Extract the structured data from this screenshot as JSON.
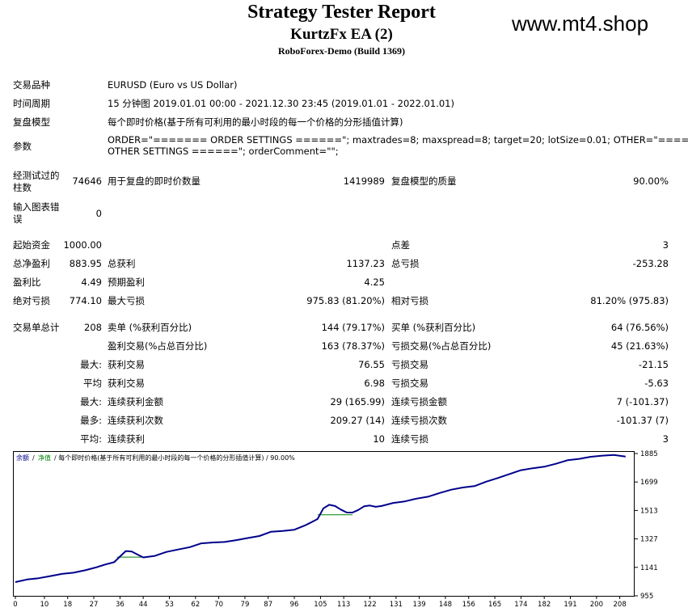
{
  "header": {
    "title": "Strategy Tester Report",
    "ea_name": "KurtzFx EA (2)",
    "server": "RoboForex-Demo (Build 1369)",
    "watermark": "www.mt4.shop"
  },
  "info": {
    "symbol_label": "交易品种",
    "symbol_value": "EURUSD (Euro vs US Dollar)",
    "period_label": "时间周期",
    "period_value": "15 分钟图 2019.01.01 00:00 - 2021.12.30 23:45 (2019.01.01 - 2022.01.01)",
    "model_label": "复盘模型",
    "model_value": "每个即时价格(基于所有可利用的最小时段的每一个价格的分形插值计算)",
    "params_label": "参数",
    "params_line1": "ORDER=\"======= ORDER SETTINGS ======\"; maxtrades=8; maxspread=8; target=20; lotSize=0.01; OTHER=\"=======",
    "params_line2": "OTHER SETTINGS ======\"; orderComment=\"\";"
  },
  "bars": {
    "label_l1": "经测试过的",
    "label_l2": "柱数",
    "value": "74646",
    "ticks_label": "用于复盘的即时价数量",
    "ticks_value": "1419989",
    "quality_label": "复盘模型的质量",
    "quality_value": "90.00%",
    "errors_l1": "输入图表错",
    "errors_l2": "误",
    "errors_value": "0"
  },
  "stats": {
    "deposit_label": "起始资金",
    "deposit_value": "1000.00",
    "spread_label": "点差",
    "spread_value": "3",
    "net_label": "总净盈利",
    "net_value": "883.95",
    "gross_profit_label": "总获利",
    "gross_profit_value": "1137.23",
    "gross_loss_label": "总亏损",
    "gross_loss_value": "-253.28",
    "pf_label": "盈利比",
    "pf_value": "4.49",
    "payoff_label": "预期盈利",
    "payoff_value": "4.25",
    "abs_dd_label": "绝对亏损",
    "abs_dd_value": "774.10",
    "max_dd_label": "最大亏损",
    "max_dd_value": "975.83 (81.20%)",
    "rel_dd_label": "相对亏损",
    "rel_dd_value": "81.20% (975.83)"
  },
  "trades": {
    "total_label": "交易单总计",
    "total_value": "208",
    "short_label": "卖单 (%获利百分比)",
    "short_value": "144 (79.17%)",
    "long_label": "买单 (%获利百分比)",
    "long_value": "64 (76.56%)",
    "profit_trades_label": "盈利交易(%占总百分比)",
    "profit_trades_value": "163 (78.37%)",
    "loss_trades_label": "亏损交易(%占总百分比)",
    "loss_trades_value": "45 (21.63%)",
    "max_pre": "最大:",
    "largest_profit_label": "获利交易",
    "largest_profit_value": "76.55",
    "largest_loss_label": "亏损交易",
    "largest_loss_value": "-21.15",
    "avg_pre": "平均",
    "avg_profit_label": "获利交易",
    "avg_profit_value": "6.98",
    "avg_loss_label": "亏损交易",
    "avg_loss_value": "-5.63",
    "max2_pre": "最大:",
    "cons_win_amt_label": "连续获利金额",
    "cons_win_amt_value": "29 (165.99)",
    "cons_loss_amt_label": "连续亏损金额",
    "cons_loss_amt_value": "7 (-101.37)",
    "most_pre": "最多:",
    "cons_win_cnt_label": "连续获利次数",
    "cons_win_cnt_value": "209.27 (14)",
    "cons_loss_cnt_label": "连续亏损次数",
    "cons_loss_cnt_value": "-101.37 (7)",
    "avg2_pre": "平均:",
    "avg_cons_win_label": "连续获利",
    "avg_cons_win_value": "10",
    "avg_cons_loss_label": "连续亏损",
    "avg_cons_loss_value": "3"
  },
  "chart_data": {
    "type": "line",
    "legend_balance": "余额",
    "legend_sep1": "/",
    "legend_equity": "净值",
    "legend_rest": "/ 每个即时价格(基于所有可利用的最小时段的每一个价格的分形插值计算) / 90.00%",
    "balance_color": "#00008b",
    "equity_color": "#008000",
    "xticks": [
      "0",
      "10",
      "18",
      "27",
      "36",
      "44",
      "53",
      "62",
      "70",
      "79",
      "87",
      "96",
      "105",
      "113",
      "122",
      "131",
      "139",
      "148",
      "156",
      "165",
      "174",
      "182",
      "191",
      "200",
      "208"
    ],
    "yticks": [
      "1885",
      "1699",
      "1513",
      "1327",
      "1141",
      "955"
    ],
    "ylim": [
      955,
      1885
    ],
    "xlim": [
      0,
      212
    ],
    "series": [
      {
        "name": "余额",
        "x": [
          0,
          4,
          8,
          12,
          16,
          20,
          24,
          28,
          31,
          34,
          36,
          38,
          40,
          42,
          44,
          48,
          52,
          56,
          60,
          64,
          68,
          72,
          76,
          80,
          84,
          88,
          92,
          96,
          100,
          104,
          106,
          108,
          110,
          112,
          114,
          116,
          118,
          120,
          122,
          124,
          126,
          130,
          134,
          138,
          142,
          146,
          150,
          154,
          158,
          162,
          166,
          170,
          174,
          178,
          182,
          186,
          190,
          194,
          198,
          202,
          206,
          210
        ],
        "values": [
          1045,
          1062,
          1070,
          1084,
          1098,
          1106,
          1122,
          1142,
          1160,
          1175,
          1212,
          1248,
          1245,
          1225,
          1206,
          1216,
          1242,
          1258,
          1273,
          1298,
          1304,
          1307,
          1319,
          1333,
          1346,
          1374,
          1379,
          1387,
          1418,
          1457,
          1527,
          1550,
          1542,
          1519,
          1500,
          1499,
          1516,
          1540,
          1545,
          1537,
          1542,
          1562,
          1572,
          1590,
          1603,
          1627,
          1649,
          1663,
          1672,
          1701,
          1725,
          1751,
          1776,
          1789,
          1799,
          1818,
          1841,
          1850,
          1864,
          1871,
          1876,
          1865
        ]
      },
      {
        "name": "净值",
        "x": [
          35,
          44,
          104,
          116
        ],
        "values": [
          1208,
          1208,
          1485,
          1485
        ]
      }
    ]
  }
}
